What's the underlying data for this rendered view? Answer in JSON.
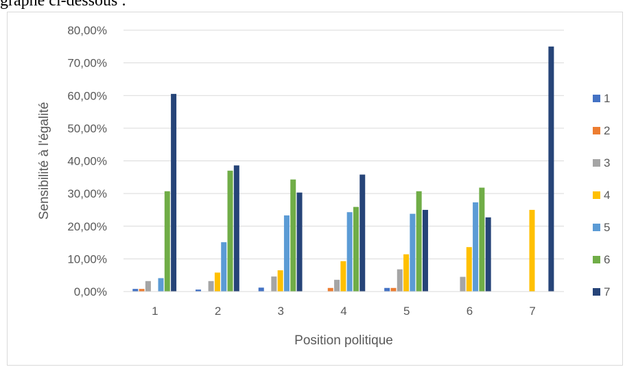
{
  "top_text": "graphe ci-dessous :",
  "chart_data": {
    "type": "bar",
    "categories": [
      "1",
      "2",
      "3",
      "4",
      "5",
      "6",
      "7"
    ],
    "series": [
      {
        "name": "1",
        "color": "#4472c4",
        "values": [
          0.8,
          0.6,
          1.2,
          0,
          1.1,
          0,
          0
        ]
      },
      {
        "name": "2",
        "color": "#ed7d31",
        "values": [
          0.8,
          0,
          0,
          1.1,
          1.1,
          0,
          0
        ]
      },
      {
        "name": "3",
        "color": "#a5a5a5",
        "values": [
          3.2,
          3.2,
          4.6,
          3.6,
          6.8,
          4.5,
          0
        ]
      },
      {
        "name": "4",
        "color": "#ffc000",
        "values": [
          0,
          5.8,
          6.5,
          9.3,
          11.4,
          13.6,
          25.0
        ]
      },
      {
        "name": "5",
        "color": "#5b9bd5",
        "values": [
          4.1,
          15.1,
          23.3,
          24.3,
          23.8,
          27.3,
          0
        ]
      },
      {
        "name": "6",
        "color": "#70ad47",
        "values": [
          30.7,
          37.0,
          34.3,
          25.9,
          30.7,
          31.8,
          0
        ]
      },
      {
        "name": "7",
        "color": "#264478",
        "values": [
          60.5,
          38.6,
          30.3,
          35.8,
          25.0,
          22.7,
          75.0
        ]
      }
    ],
    "y_ticks": [
      "0,00%",
      "10,00%",
      "20,00%",
      "30,00%",
      "40,00%",
      "50,00%",
      "60,00%",
      "70,00%",
      "80,00%"
    ],
    "ylim": [
      0,
      80
    ],
    "xlabel": "Position politique",
    "ylabel": "Sensibilité à l'égalité",
    "grid": true,
    "legend_position": "right"
  }
}
